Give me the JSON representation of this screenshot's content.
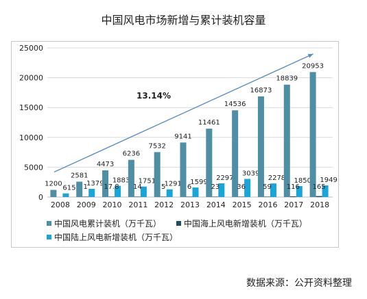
{
  "title": "中国风电市场新增与累计装机容量",
  "source": "数据来源：公开资料整理",
  "colors": {
    "cumulative": "#4f8fa6",
    "offshore_new": "#1f4e5f",
    "onshore_new": "#18a5d8",
    "trend_arrow": "#5a8fc6",
    "grid": "#d9d9d9",
    "axis_text": "#222222"
  },
  "chart_data": {
    "type": "bar",
    "title": "中国风电市场新增与累计装机容量",
    "xlabel": "",
    "ylabel": "",
    "categories": [
      "2008",
      "2009",
      "2010",
      "2011",
      "2012",
      "2013",
      "2014",
      "2015",
      "2016",
      "2017",
      "2018"
    ],
    "ylim": [
      0,
      25000
    ],
    "yticks": [
      "0",
      "5000",
      "10000",
      "15000",
      "20000",
      "25000"
    ],
    "grid": true,
    "legend_position": "bottom",
    "series": [
      {
        "name": "中国风电累计装机（万千瓦）",
        "values": [
          1200,
          2581,
          4473,
          6236,
          7532,
          9141,
          11461,
          14536,
          16873,
          18839,
          20953
        ]
      },
      {
        "name": "中国海上风电新增装机（万千瓦）",
        "values": [
          null,
          1,
          17.8,
          14,
          5,
          6,
          23,
          36,
          59,
          116,
          165
        ]
      },
      {
        "name": "中国陆上风电新增装机（万千瓦）",
        "values": [
          615,
          1379,
          1883,
          1751,
          1291,
          1599,
          2297,
          3039,
          2278,
          1850,
          1949
        ]
      }
    ],
    "annotations": [
      {
        "text": "13.14%",
        "type": "growth-arrow"
      }
    ]
  }
}
